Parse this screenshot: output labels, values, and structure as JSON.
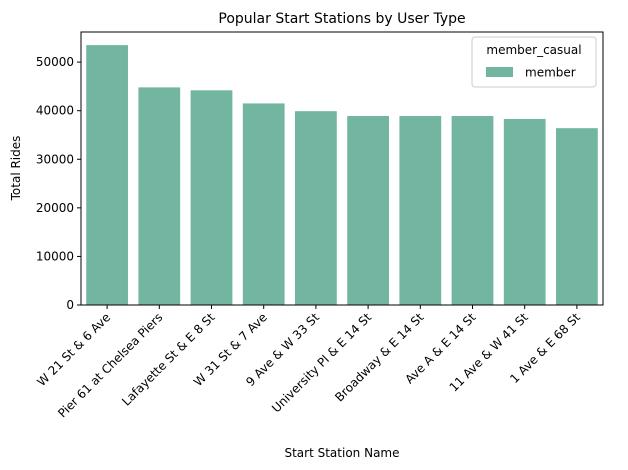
{
  "chart_data": {
    "type": "bar",
    "title": "Popular Start Stations by User Type",
    "xlabel": "Start Station Name",
    "ylabel": "Total Rides",
    "categories": [
      "W 21 St & 6 Ave",
      "Pier 61 at Chelsea Piers",
      "Lafayette St & E 8 St",
      "W 31 St & 7 Ave",
      "9 Ave & W 33 St",
      "University Pl & E 14 St",
      "Broadway & E 14 St",
      "Ave A & E 14 St",
      "11 Ave & W 41 St",
      "1 Ave & E 68 St"
    ],
    "series": [
      {
        "name": "member",
        "color": "#72b6a1",
        "values": [
          53500,
          44800,
          44200,
          41500,
          39900,
          38900,
          38900,
          38900,
          38300,
          36400
        ]
      }
    ],
    "yticks": [
      0,
      10000,
      20000,
      30000,
      40000,
      50000
    ],
    "ylim": [
      0,
      56200
    ],
    "legend": {
      "title": "member_casual",
      "position": "top-right"
    },
    "grid": false
  }
}
